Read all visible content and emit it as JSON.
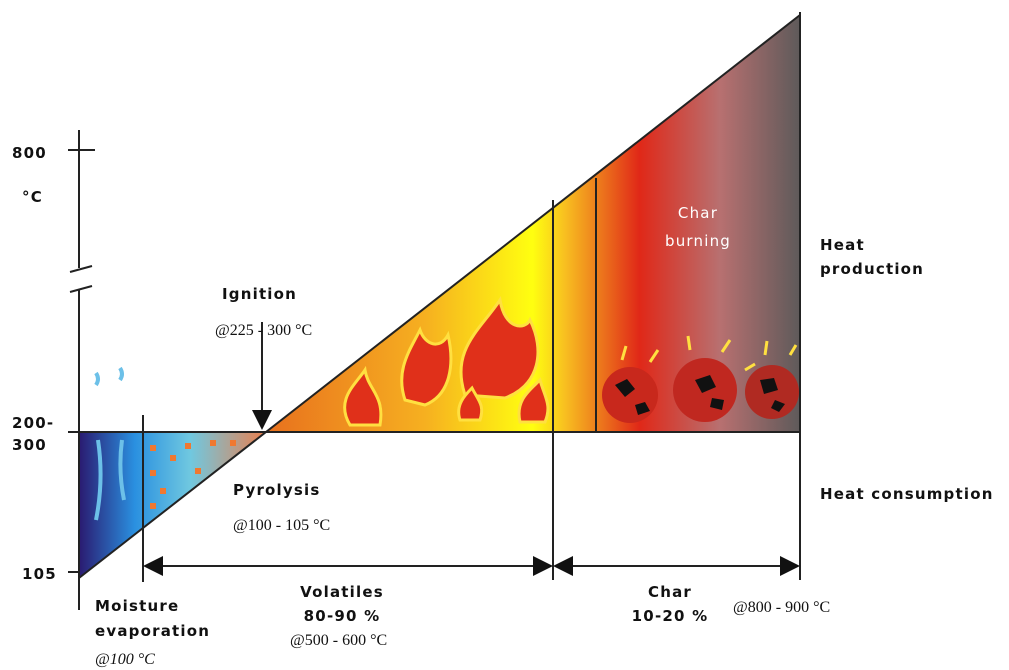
{
  "axis": {
    "ticks": [
      "800",
      "200-",
      "300",
      "105"
    ],
    "unit": "°C"
  },
  "ignition": {
    "label": "Ignition",
    "temperature": "@225 - 300 °C"
  },
  "pyrolysis": {
    "label": "Pyrolysis",
    "temperature": "@100 - 105 °C"
  },
  "char_burning": [
    "Char",
    "burning"
  ],
  "heat": {
    "production": [
      "Heat",
      "production"
    ],
    "consumption": "Heat consumption"
  },
  "stages": [
    {
      "label": [
        "Moisture",
        "evaporation"
      ],
      "temperature": "@100 °C"
    },
    {
      "label": [
        "Volatiles",
        "80-90 %"
      ],
      "temperature": "@500 - 600 °C"
    },
    {
      "label": [
        "Char",
        "10-20 %"
      ],
      "temperature": "@800 - 900 °C"
    }
  ]
}
